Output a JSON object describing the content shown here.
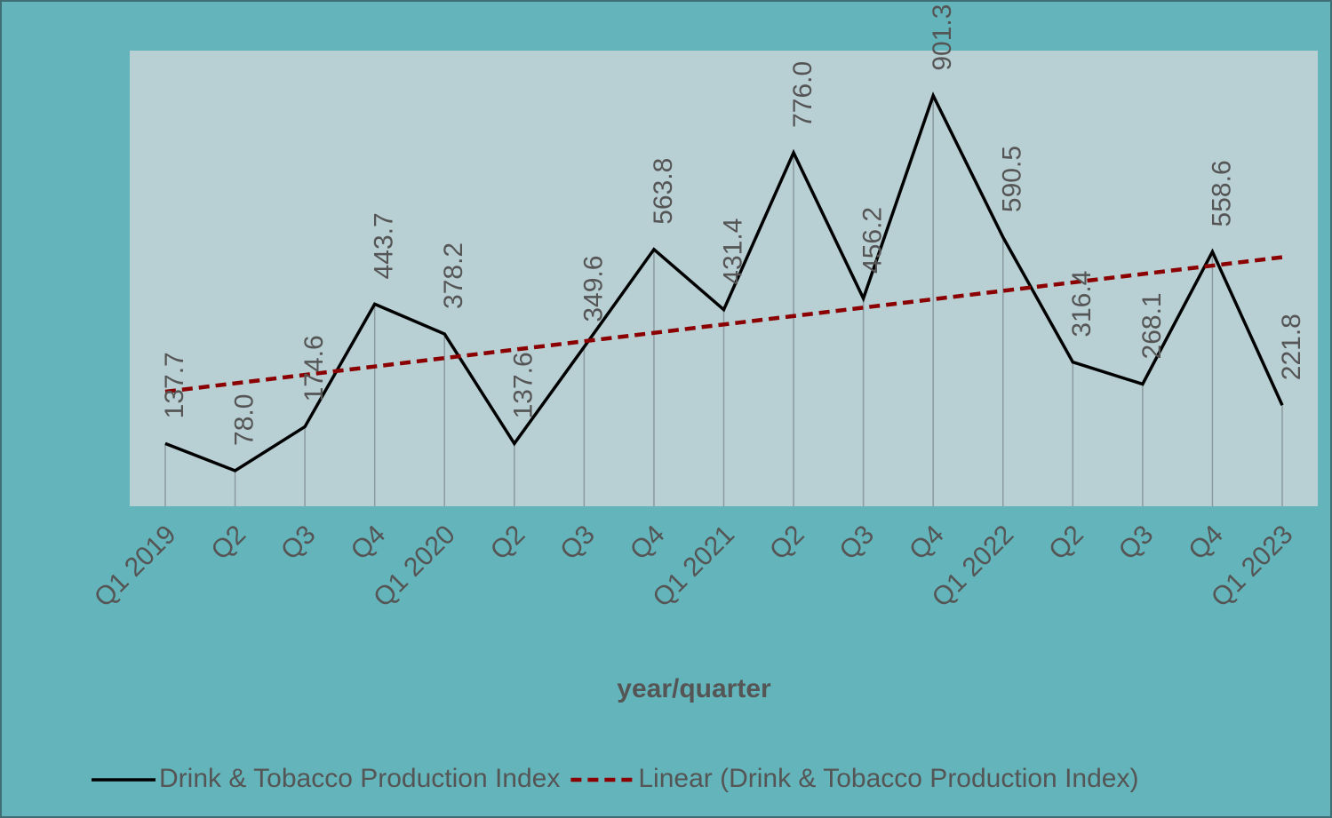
{
  "chart_data": {
    "type": "line",
    "categories": [
      "Q1 2019",
      "Q2",
      "Q3",
      "Q4",
      "Q1 2020",
      "Q2",
      "Q3",
      "Q4",
      "Q1 2021",
      "Q2",
      "Q3",
      "Q4",
      "Q1 2022",
      "Q2",
      "Q3",
      "Q4",
      "Q1 2023"
    ],
    "series": [
      {
        "name": "Drink & Tobacco Production Index",
        "color": "#000000",
        "values": [
          137.7,
          78.0,
          174.6,
          443.7,
          378.2,
          137.6,
          349.6,
          563.8,
          431.4,
          776.0,
          456.2,
          901.3,
          590.5,
          316.4,
          268.1,
          558.6,
          221.8
        ],
        "value_labels": [
          "137.7",
          "78.0",
          "174.6",
          "443.7",
          "378.2",
          "137.6",
          "349.6",
          "563.8",
          "431.4",
          "776.0",
          "456.2",
          "901.3",
          "590.5",
          "316.4",
          "268.1",
          "558.6",
          "221.8"
        ]
      }
    ],
    "trendline": {
      "name": "Linear (Drink & Tobacco Production Index)",
      "color": "#8b0000",
      "dash": true
    },
    "xlabel": "year/quarter",
    "ylim": [
      0,
      1000
    ],
    "legend": "bottom"
  }
}
